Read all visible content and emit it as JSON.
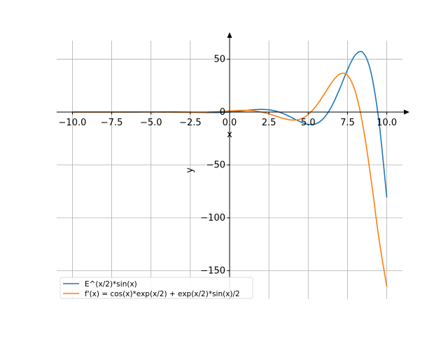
{
  "chart_data": {
    "type": "line",
    "title": "",
    "xlabel": "x",
    "ylabel": "y",
    "xlim": [
      -11,
      11
    ],
    "ylim": [
      -176.8,
      67.5
    ],
    "grid": true,
    "legend_placement": "top-left",
    "x_ticks": [
      -10,
      -7.5,
      -5,
      -2.5,
      0,
      2.5,
      5,
      7.5,
      10
    ],
    "x_tick_labels": [
      "−10.0",
      "−7.5",
      "−5.0",
      "−2.5",
      "0.0",
      "2.5",
      "5.0",
      "7.5",
      "10.0"
    ],
    "y_ticks": [
      50,
      0,
      -50,
      -100,
      -150
    ],
    "y_tick_labels": [
      "50",
      "0",
      "−50",
      "−100",
      "−150"
    ],
    "x": [
      -10,
      -9.5,
      -9,
      -8.5,
      -8,
      -7.5,
      -7,
      -6.5,
      -6,
      -5.5,
      -5,
      -4.5,
      -4,
      -3.5,
      -3,
      -2.5,
      -2,
      -1.5,
      -1,
      -0.5,
      0,
      0.5,
      1,
      1.5,
      2,
      2.5,
      3,
      3.5,
      4,
      4.5,
      5,
      5.5,
      6,
      6.5,
      7,
      7.5,
      8,
      8.5,
      9,
      9.5,
      10
    ],
    "series": [
      {
        "name": "E^(x/2)*sin(x)",
        "color": "#1f77b4",
        "values": [
          0.004,
          0.001,
          -0.005,
          -0.011,
          -0.018,
          -0.022,
          -0.02,
          -0.008,
          0.014,
          0.045,
          0.079,
          0.103,
          0.102,
          0.061,
          -0.032,
          -0.171,
          -0.335,
          -0.471,
          -0.51,
          -0.373,
          0,
          0.616,
          1.387,
          2.112,
          2.472,
          2.089,
          0.632,
          -2.019,
          -5.592,
          -9.274,
          -11.682,
          -11.036,
          -5.612,
          5.547,
          21.757,
          39.885,
          54.02,
          55.98,
          37.1,
          -8.69,
          -80.74
        ]
      },
      {
        "name": "f'(x) = cos(x)*exp(x/2) + exp(x/2)*sin(x)/2",
        "color": "#ff7f0e",
        "values": [
          -0.004,
          -0.008,
          -0.012,
          -0.014,
          -0.012,
          -0.003,
          0.013,
          0.034,
          0.055,
          0.068,
          0.063,
          0.029,
          -0.037,
          -0.132,
          -0.237,
          -0.315,
          -0.32,
          -0.202,
          0.0725,
          0.497,
          1,
          1.435,
          1.584,
          1.206,
          0.105,
          -1.751,
          -4.121,
          -6.399,
          -7.626,
          -6.637,
          -2.385,
          5.567,
          16.48,
          27.96,
          35.84,
          34.68,
          19.07,
          -14.21,
          -63.46,
          -119.61,
          -164.9
        ]
      }
    ]
  }
}
